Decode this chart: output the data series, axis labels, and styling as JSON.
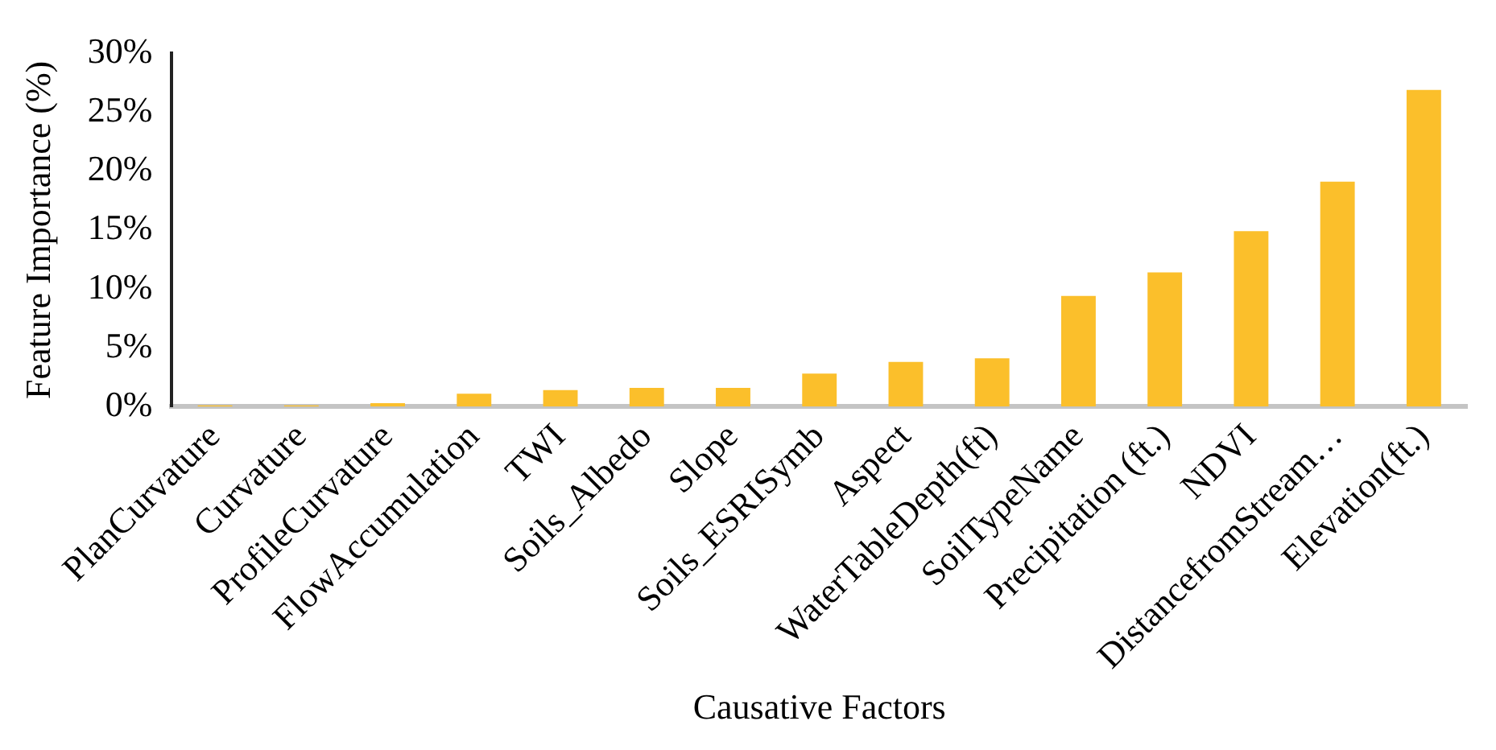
{
  "chart_data": {
    "type": "bar",
    "xlabel": "Causative Factors",
    "ylabel": "Feature Importance (%)",
    "categories": [
      "PlanCurvature",
      "Curvature",
      "ProfileCurvature",
      "FlowAccumulation",
      "TWI",
      "Soils_Albedo",
      "Slope",
      "Soils_ESRISymb",
      "Aspect",
      "WaterTableDepth(ft)",
      "SoilTypeName",
      "Precipitation (ft.)",
      "NDVI",
      "DistancefromStream…",
      "Elevation(ft.)"
    ],
    "values": [
      0.1,
      0.1,
      0.3,
      1.1,
      1.4,
      1.6,
      1.6,
      2.8,
      3.8,
      4.1,
      9.4,
      11.4,
      14.9,
      19.1,
      26.9
    ],
    "color": "#fbbf2b",
    "ylim": [
      0,
      30
    ],
    "yticks": [
      {
        "value": 0,
        "label": "0%"
      },
      {
        "value": 5,
        "label": "5%"
      },
      {
        "value": 10,
        "label": "10%"
      },
      {
        "value": 15,
        "label": "15%"
      },
      {
        "value": 20,
        "label": "20%"
      },
      {
        "value": 25,
        "label": "25%"
      },
      {
        "value": 30,
        "label": "30%"
      }
    ],
    "grid": false,
    "legend": false
  }
}
